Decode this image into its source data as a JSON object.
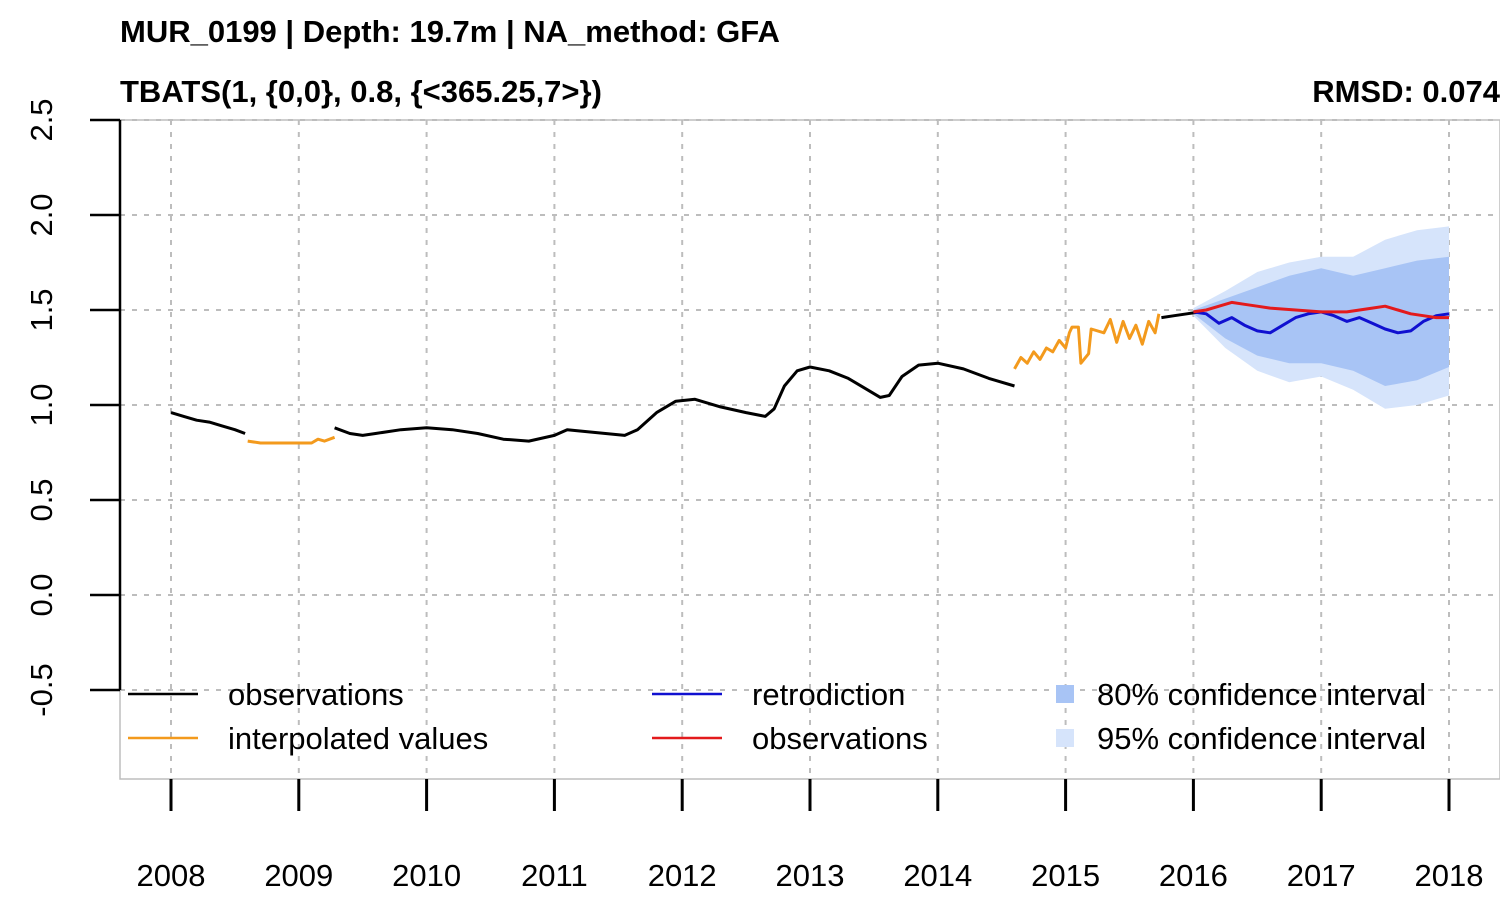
{
  "chart_data": {
    "type": "line",
    "title": "MUR_0199 | Depth: 19.7m | NA_method: GFA",
    "subtitle": "TBATS(1, {0,0}, 0.8, {<365.25,7>})",
    "metric": "RMSD: 0.074",
    "xlabel": "",
    "ylabel": "",
    "xlim": [
      2007.6,
      2018.2
    ],
    "ylim": [
      -0.95,
      2.5
    ],
    "x_ticks": [
      "2008",
      "2009",
      "2010",
      "2011",
      "2012",
      "2013",
      "2014",
      "2015",
      "2016",
      "2017",
      "2018"
    ],
    "y_ticks": [
      "-0.5",
      "0.0",
      "0.5",
      "1.0",
      "1.5",
      "2.0",
      "2.5"
    ],
    "grid": true,
    "legend_position": "bottom",
    "legend": [
      {
        "label": "observations",
        "color": "#000000",
        "kind": "line"
      },
      {
        "label": "interpolated values",
        "color": "#f39a1d",
        "kind": "line"
      },
      {
        "label": "retrodiction",
        "color": "#1010d0",
        "kind": "line"
      },
      {
        "label": "observations",
        "color": "#e31a1c",
        "kind": "line"
      },
      {
        "label": "80% confidence interval",
        "color": "#a8c4f5",
        "kind": "box"
      },
      {
        "label": "95% confidence interval",
        "color": "#d6e4fb",
        "kind": "box"
      }
    ],
    "series": [
      {
        "name": "observations",
        "color": "#000000",
        "segments": [
          [
            [
              2008.0,
              0.96
            ],
            [
              2008.1,
              0.94
            ],
            [
              2008.2,
              0.92
            ],
            [
              2008.3,
              0.91
            ],
            [
              2008.4,
              0.89
            ],
            [
              2008.5,
              0.87
            ],
            [
              2008.58,
              0.85
            ]
          ],
          [
            [
              2009.28,
              0.88
            ],
            [
              2009.4,
              0.85
            ],
            [
              2009.5,
              0.84
            ],
            [
              2009.6,
              0.85
            ],
            [
              2009.8,
              0.87
            ],
            [
              2010.0,
              0.88
            ],
            [
              2010.2,
              0.87
            ],
            [
              2010.4,
              0.85
            ],
            [
              2010.6,
              0.82
            ],
            [
              2010.8,
              0.81
            ],
            [
              2011.0,
              0.84
            ],
            [
              2011.1,
              0.87
            ],
            [
              2011.25,
              0.86
            ],
            [
              2011.4,
              0.85
            ],
            [
              2011.55,
              0.84
            ],
            [
              2011.65,
              0.87
            ],
            [
              2011.8,
              0.96
            ],
            [
              2011.95,
              1.02
            ],
            [
              2012.1,
              1.03
            ],
            [
              2012.3,
              0.99
            ],
            [
              2012.5,
              0.96
            ],
            [
              2012.65,
              0.94
            ],
            [
              2012.72,
              0.98
            ],
            [
              2012.8,
              1.1
            ],
            [
              2012.9,
              1.18
            ],
            [
              2013.0,
              1.2
            ],
            [
              2013.15,
              1.18
            ],
            [
              2013.3,
              1.14
            ],
            [
              2013.45,
              1.08
            ],
            [
              2013.55,
              1.04
            ],
            [
              2013.62,
              1.05
            ],
            [
              2013.72,
              1.15
            ],
            [
              2013.85,
              1.21
            ],
            [
              2014.0,
              1.22
            ],
            [
              2014.2,
              1.19
            ],
            [
              2014.4,
              1.14
            ],
            [
              2014.6,
              1.1
            ]
          ],
          [
            [
              2015.75,
              1.46
            ],
            [
              2015.85,
              1.47
            ],
            [
              2015.95,
              1.48
            ],
            [
              2016.05,
              1.49
            ]
          ]
        ]
      },
      {
        "name": "interpolated values",
        "color": "#f39a1d",
        "segments": [
          [
            [
              2008.6,
              0.81
            ],
            [
              2008.7,
              0.8
            ],
            [
              2009.0,
              0.8
            ],
            [
              2009.1,
              0.8
            ],
            [
              2009.15,
              0.82
            ],
            [
              2009.2,
              0.81
            ],
            [
              2009.28,
              0.83
            ]
          ],
          [
            [
              2014.6,
              1.19
            ],
            [
              2014.65,
              1.25
            ],
            [
              2014.7,
              1.22
            ],
            [
              2014.75,
              1.28
            ],
            [
              2014.8,
              1.24
            ],
            [
              2014.85,
              1.3
            ],
            [
              2014.9,
              1.28
            ],
            [
              2014.95,
              1.34
            ],
            [
              2015.0,
              1.3
            ],
            [
              2015.03,
              1.38
            ],
            [
              2015.05,
              1.41
            ],
            [
              2015.1,
              1.41
            ],
            [
              2015.12,
              1.22
            ],
            [
              2015.18,
              1.27
            ],
            [
              2015.2,
              1.4
            ],
            [
              2015.3,
              1.38
            ],
            [
              2015.35,
              1.45
            ],
            [
              2015.4,
              1.33
            ],
            [
              2015.45,
              1.44
            ],
            [
              2015.5,
              1.35
            ],
            [
              2015.55,
              1.42
            ],
            [
              2015.6,
              1.32
            ],
            [
              2015.65,
              1.44
            ],
            [
              2015.7,
              1.38
            ],
            [
              2015.73,
              1.48
            ]
          ]
        ]
      },
      {
        "name": "retrodiction",
        "color": "#1010d0",
        "segments": [
          [
            [
              2016.0,
              1.49
            ],
            [
              2016.1,
              1.48
            ],
            [
              2016.2,
              1.43
            ],
            [
              2016.3,
              1.46
            ],
            [
              2016.4,
              1.42
            ],
            [
              2016.5,
              1.39
            ],
            [
              2016.6,
              1.38
            ],
            [
              2016.7,
              1.42
            ],
            [
              2016.8,
              1.46
            ],
            [
              2016.9,
              1.48
            ],
            [
              2017.0,
              1.49
            ],
            [
              2017.1,
              1.47
            ],
            [
              2017.2,
              1.44
            ],
            [
              2017.3,
              1.46
            ],
            [
              2017.4,
              1.43
            ],
            [
              2017.5,
              1.4
            ],
            [
              2017.6,
              1.38
            ],
            [
              2017.7,
              1.39
            ],
            [
              2017.8,
              1.44
            ],
            [
              2017.9,
              1.47
            ],
            [
              2018.0,
              1.48
            ]
          ]
        ]
      },
      {
        "name": "observations",
        "color": "#e31a1c",
        "segments": [
          [
            [
              2016.0,
              1.49
            ],
            [
              2016.1,
              1.5
            ],
            [
              2016.2,
              1.52
            ],
            [
              2016.3,
              1.54
            ],
            [
              2016.4,
              1.53
            ],
            [
              2016.5,
              1.52
            ],
            [
              2016.6,
              1.51
            ],
            [
              2016.8,
              1.5
            ],
            [
              2017.0,
              1.49
            ],
            [
              2017.2,
              1.49
            ],
            [
              2017.4,
              1.51
            ],
            [
              2017.5,
              1.52
            ],
            [
              2017.6,
              1.5
            ],
            [
              2017.7,
              1.48
            ],
            [
              2017.8,
              1.47
            ],
            [
              2017.9,
              1.46
            ],
            [
              2018.0,
              1.46
            ]
          ]
        ]
      }
    ],
    "bands": [
      {
        "name": "95% confidence interval",
        "color": "#d6e4fb",
        "x": [
          2016.0,
          2016.25,
          2016.5,
          2016.75,
          2017.0,
          2017.25,
          2017.5,
          2017.75,
          2018.0
        ],
        "lower": [
          1.47,
          1.3,
          1.18,
          1.12,
          1.15,
          1.08,
          0.98,
          1.0,
          1.05
        ],
        "upper": [
          1.51,
          1.6,
          1.7,
          1.75,
          1.78,
          1.78,
          1.87,
          1.92,
          1.94
        ]
      },
      {
        "name": "80% confidence interval",
        "color": "#a8c4f5",
        "x": [
          2016.0,
          2016.25,
          2016.5,
          2016.75,
          2017.0,
          2017.25,
          2017.5,
          2017.75,
          2018.0
        ],
        "lower": [
          1.48,
          1.35,
          1.26,
          1.22,
          1.22,
          1.18,
          1.1,
          1.13,
          1.2
        ],
        "upper": [
          1.5,
          1.56,
          1.62,
          1.68,
          1.72,
          1.68,
          1.72,
          1.76,
          1.78
        ]
      }
    ]
  }
}
